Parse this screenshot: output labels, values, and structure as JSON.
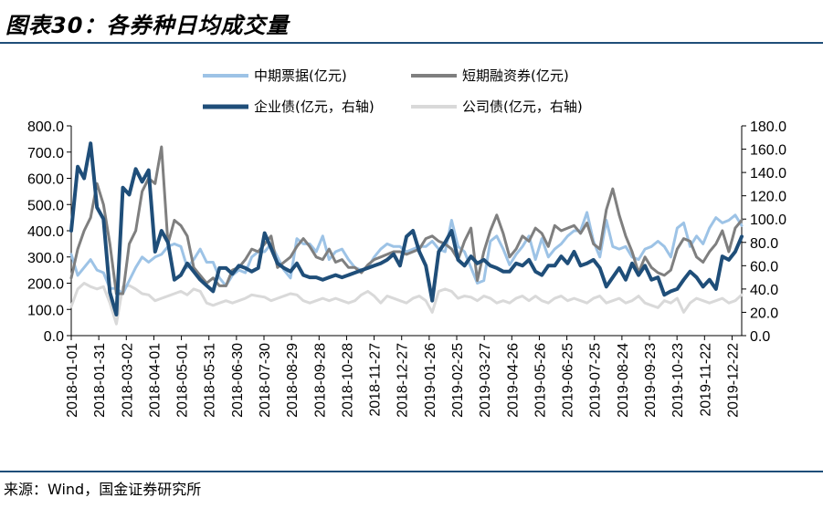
{
  "header": {
    "title": "图表30：各券种日均成交量"
  },
  "footer": {
    "source": "来源：Wind，国金证券研究所"
  },
  "chart_data": {
    "type": "line",
    "title": "图表30：各券种日均成交量",
    "left_axis": {
      "range": [
        0,
        800
      ],
      "ticks": [
        "0.0",
        "100.0",
        "200.0",
        "300.0",
        "400.0",
        "500.0",
        "600.0",
        "700.0",
        "800.0"
      ]
    },
    "right_axis": {
      "range": [
        0,
        180
      ],
      "ticks": [
        "0.0",
        "20.0",
        "40.0",
        "60.0",
        "80.0",
        "100.0",
        "120.0",
        "140.0",
        "160.0",
        "180.0"
      ]
    },
    "x_ticks": [
      "2018-01-01",
      "2018-01-31",
      "2018-03-02",
      "2018-04-01",
      "2018-05-01",
      "2018-05-31",
      "2018-06-30",
      "2018-07-30",
      "2018-08-29",
      "2018-09-28",
      "2018-10-28",
      "2018-11-27",
      "2018-12-27",
      "2019-01-26",
      "2019-02-25",
      "2019-03-27",
      "2019-04-26",
      "2019-05-26",
      "2019-06-25",
      "2019-07-25",
      "2019-08-24",
      "2019-09-23",
      "2019-10-23",
      "2019-11-22",
      "2019-12-22"
    ],
    "x_count": 105,
    "colors": {
      "mtn": "#9dc3e6",
      "scp": "#7f7f7f",
      "corp": "#1f4e79",
      "comp": "#d9d9d9"
    },
    "series": [
      {
        "name": "中期票据(亿元)",
        "axis": "left",
        "color": "#9dc3e6",
        "width": 3,
        "values": [
          310,
          230,
          260,
          290,
          250,
          240,
          180,
          180,
          160,
          210,
          260,
          300,
          280,
          300,
          310,
          340,
          350,
          340,
          260,
          290,
          330,
          280,
          280,
          220,
          190,
          230,
          250,
          240,
          300,
          320,
          320,
          350,
          300,
          250,
          220,
          370,
          350,
          350,
          320,
          380,
          290,
          320,
          330,
          290,
          260,
          250,
          260,
          300,
          330,
          350,
          340,
          340,
          320,
          330,
          340,
          340,
          360,
          330,
          320,
          440,
          340,
          320,
          260,
          200,
          210,
          360,
          380,
          330,
          270,
          310,
          340,
          380,
          290,
          370,
          300,
          330,
          350,
          380,
          400,
          400,
          470,
          360,
          300,
          440,
          340,
          330,
          340,
          300,
          290,
          330,
          340,
          360,
          340,
          300,
          410,
          430,
          340,
          380,
          350,
          410,
          450,
          430,
          440,
          460,
          420
        ]
      },
      {
        "name": "短期融资券(亿元)",
        "axis": "left",
        "color": "#7f7f7f",
        "width": 3,
        "values": [
          220,
          330,
          400,
          450,
          580,
          500,
          350,
          160,
          160,
          350,
          400,
          550,
          600,
          580,
          720,
          350,
          440,
          420,
          380,
          260,
          230,
          200,
          220,
          190,
          190,
          250,
          260,
          290,
          330,
          320,
          350,
          380,
          260,
          280,
          300,
          340,
          370,
          340,
          300,
          290,
          330,
          280,
          290,
          260,
          260,
          240,
          270,
          290,
          300,
          310,
          320,
          320,
          310,
          320,
          330,
          370,
          380,
          360,
          350,
          330,
          290,
          360,
          410,
          210,
          320,
          400,
          460,
          390,
          300,
          330,
          380,
          360,
          410,
          390,
          340,
          420,
          400,
          410,
          420,
          390,
          430,
          350,
          330,
          480,
          560,
          460,
          380,
          320,
          240,
          300,
          260,
          240,
          230,
          250,
          330,
          370,
          360,
          300,
          280,
          320,
          350,
          400,
          320,
          410,
          440
        ]
      },
      {
        "name": "企业债(亿元，右轴)",
        "axis": "right",
        "color": "#1f4e79",
        "width": 4,
        "values": [
          90,
          145,
          135,
          165,
          110,
          100,
          37,
          18,
          127,
          121,
          143,
          132,
          142,
          72,
          90,
          80,
          48,
          52,
          62,
          55,
          48,
          43,
          38,
          58,
          58,
          53,
          60,
          58,
          55,
          58,
          88,
          75,
          62,
          58,
          55,
          62,
          52,
          50,
          50,
          48,
          50,
          52,
          50,
          52,
          54,
          56,
          58,
          60,
          62,
          65,
          70,
          60,
          85,
          90,
          72,
          60,
          30,
          72,
          80,
          90,
          65,
          60,
          68,
          62,
          65,
          60,
          58,
          55,
          55,
          62,
          60,
          65,
          55,
          52,
          60,
          60,
          68,
          62,
          72,
          60,
          62,
          65,
          58,
          42,
          50,
          58,
          48,
          62,
          52,
          60,
          48,
          50,
          35,
          38,
          40,
          48,
          55,
          50,
          42,
          48,
          40,
          68,
          65,
          72,
          85
        ]
      },
      {
        "name": "公司债(亿元，右轴)",
        "axis": "right",
        "color": "#d9d9d9",
        "width": 3,
        "values": [
          25,
          40,
          45,
          42,
          40,
          42,
          28,
          10,
          42,
          43,
          40,
          36,
          35,
          30,
          32,
          34,
          36,
          38,
          35,
          40,
          38,
          28,
          26,
          28,
          30,
          28,
          30,
          32,
          35,
          34,
          33,
          30,
          32,
          34,
          36,
          35,
          30,
          28,
          30,
          32,
          30,
          32,
          30,
          28,
          30,
          35,
          38,
          34,
          28,
          34,
          32,
          30,
          28,
          32,
          34,
          30,
          20,
          38,
          40,
          38,
          32,
          34,
          33,
          30,
          34,
          32,
          28,
          30,
          28,
          32,
          34,
          30,
          34,
          30,
          28,
          32,
          34,
          30,
          32,
          30,
          28,
          32,
          34,
          28,
          30,
          32,
          28,
          30,
          34,
          28,
          26,
          24,
          30,
          28,
          32,
          20,
          28,
          32,
          30,
          28,
          30,
          32,
          28,
          30,
          35
        ]
      }
    ]
  }
}
